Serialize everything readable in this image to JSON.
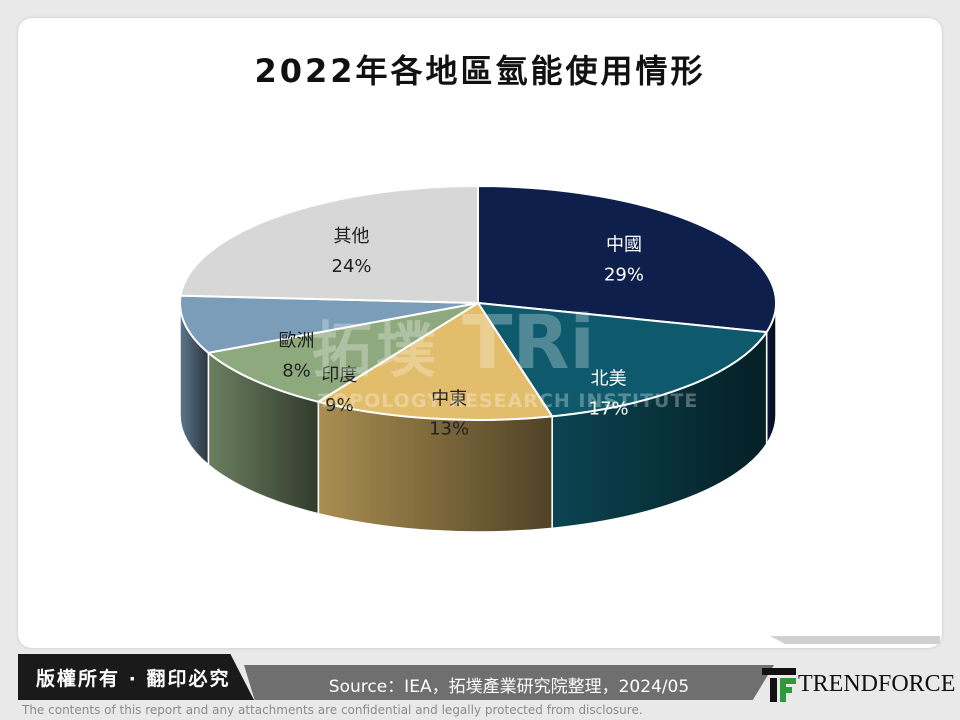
{
  "title": "2022年各地區氫能使用情形",
  "chart_data": {
    "type": "pie",
    "style": "3d",
    "slices": [
      {
        "label": "中國",
        "value": 29,
        "value_label": "29%",
        "color": "#0e1f4c",
        "text_color": "#ffffff"
      },
      {
        "label": "北美",
        "value": 17,
        "value_label": "17%",
        "color": "#0e5a6c",
        "text_color": "#ffffff"
      },
      {
        "label": "中東",
        "value": 13,
        "value_label": "13%",
        "color": "#e2bd6c",
        "text_color": "#222222"
      },
      {
        "label": "印度",
        "value": 9,
        "value_label": "9%",
        "color": "#8fa97f",
        "text_color": "#222222"
      },
      {
        "label": "歐洲",
        "value": 8,
        "value_label": "8%",
        "color": "#7b9db8",
        "text_color": "#222222"
      },
      {
        "label": "其他",
        "value": 24,
        "value_label": "24%",
        "color": "#d7d7d7",
        "text_color": "#222222"
      }
    ]
  },
  "watermark": {
    "cn": "拓墣",
    "logo": "TRi",
    "en": "TOPOLOGY RESEARCH INSTITUTE"
  },
  "footer": {
    "copyright": "版權所有 · 翻印必究",
    "source": "Source：IEA，拓墣產業研究院整理，2024/05",
    "brand": "TRENDFORCE",
    "disclaimer": "The contents of this report and any attachments are confidential and legally protected from disclosure."
  }
}
